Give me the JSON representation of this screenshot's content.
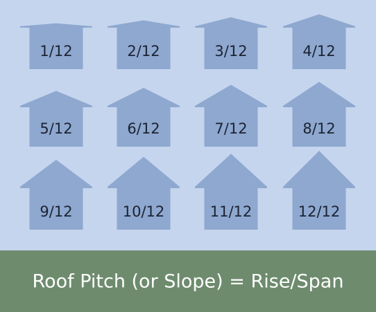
{
  "nodes": [
    {
      "label": "1/12"
    },
    {
      "label": "2/12"
    },
    {
      "label": "3/12"
    },
    {
      "label": "4/12"
    },
    {
      "label": "5/12"
    },
    {
      "label": "6/12"
    },
    {
      "label": "7/12"
    },
    {
      "label": "8/12"
    },
    {
      "label": "9/12"
    },
    {
      "label": "10/12"
    },
    {
      "label": "11/12"
    },
    {
      "label": "12/12"
    }
  ],
  "caption": {
    "title": "Roof Pitch (or Slope) = Rise/Span"
  }
}
